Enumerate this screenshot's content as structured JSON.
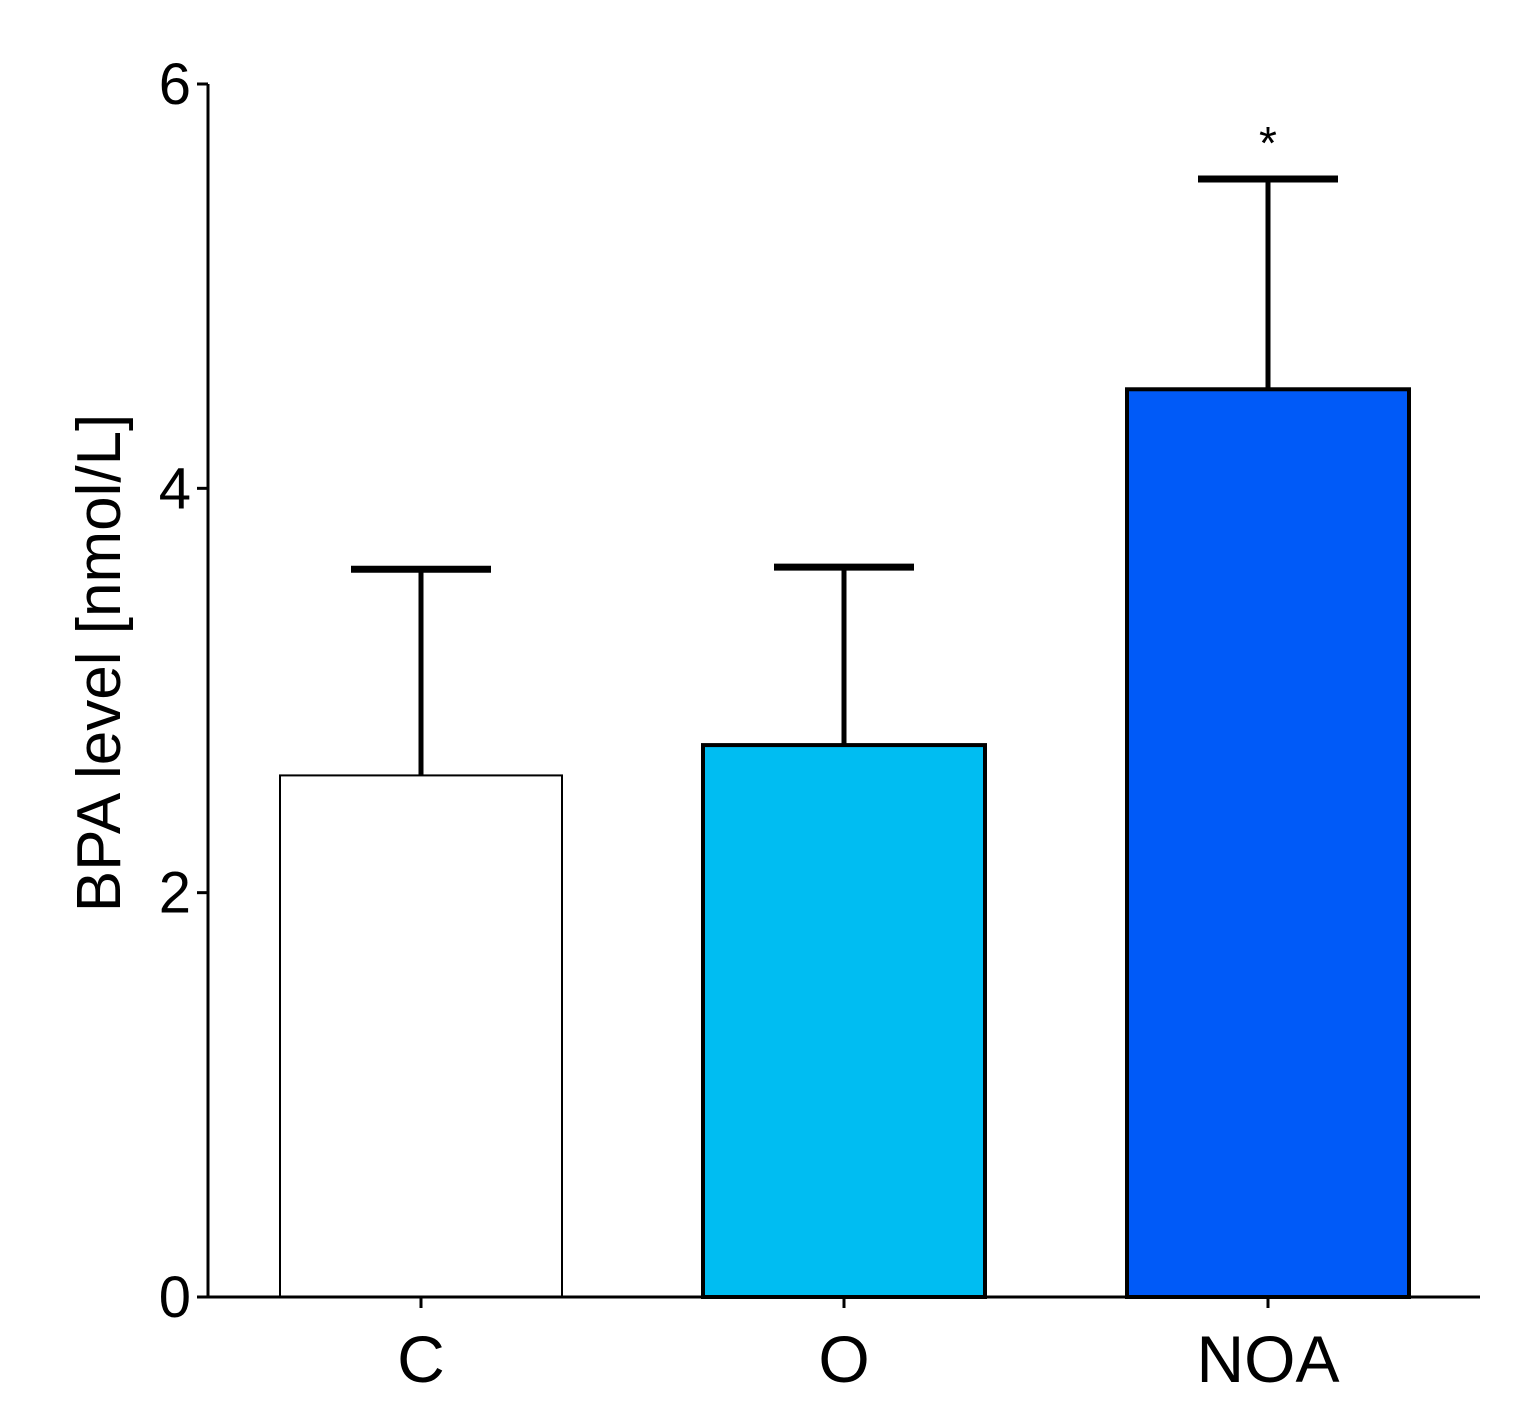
{
  "chart_data": {
    "type": "bar",
    "title": "",
    "xlabel": "",
    "ylabel": "BPA level [nmol/L]",
    "ylim": [
      0,
      6
    ],
    "yticks": [
      0,
      2,
      4,
      6
    ],
    "ytick_labels": [
      "0",
      "2",
      "4",
      "6"
    ],
    "categories": [
      "C",
      "O",
      "NOA"
    ],
    "values": [
      2.58,
      2.73,
      4.49
    ],
    "errors": [
      1.02,
      0.88,
      1.04
    ],
    "colors": [
      "#ffffff",
      "#00bdf2",
      "#005af8"
    ],
    "annotations": [
      "",
      "",
      "*"
    ],
    "grid": false,
    "legend": "none"
  }
}
